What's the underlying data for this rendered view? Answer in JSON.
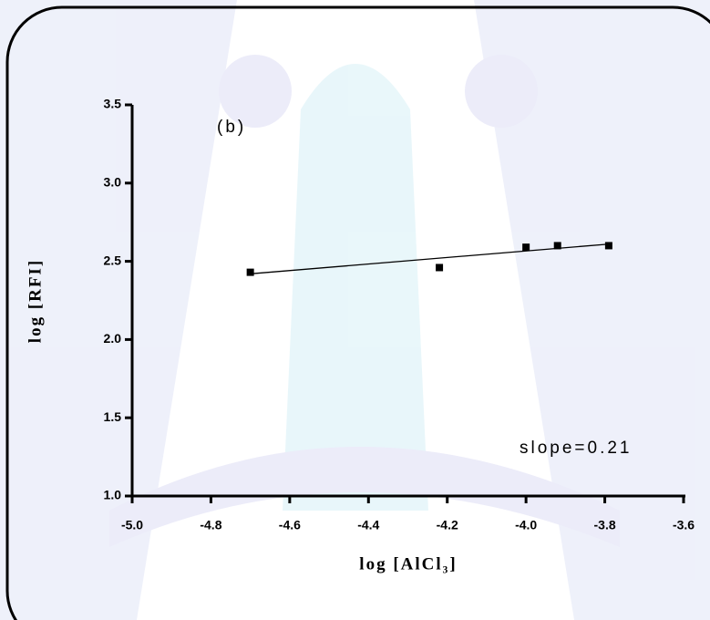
{
  "chart_data": {
    "type": "scatter",
    "annotations": [
      "(b)",
      "slope=0.21"
    ],
    "x_label": "log [AlCl₃]",
    "y_label": "log [RFI]",
    "x": [
      -4.7,
      -4.22,
      -4.0,
      -3.92,
      -3.79
    ],
    "values": [
      2.43,
      2.46,
      2.59,
      2.6,
      2.6
    ],
    "color": "#000000",
    "fit": {
      "x": [
        -4.7,
        -3.79
      ],
      "values": [
        2.42,
        2.61
      ]
    },
    "xlim": [
      -5.0,
      -3.6
    ],
    "xticks": [
      {
        "value": -5.0,
        "label": "-5.0"
      },
      -4.8,
      -4.6,
      -4.4,
      -4.2,
      {
        "value": -4.0,
        "label": "-4.0"
      },
      -3.8,
      -3.6
    ],
    "ylim": [
      1.0,
      3.5
    ],
    "yticks": [
      {
        "value": 1.0,
        "label": "1.0"
      },
      1.5,
      {
        "value": 2.0,
        "label": "2.0"
      },
      2.5,
      {
        "value": 3.0,
        "label": "3.0"
      },
      3.5
    ]
  }
}
